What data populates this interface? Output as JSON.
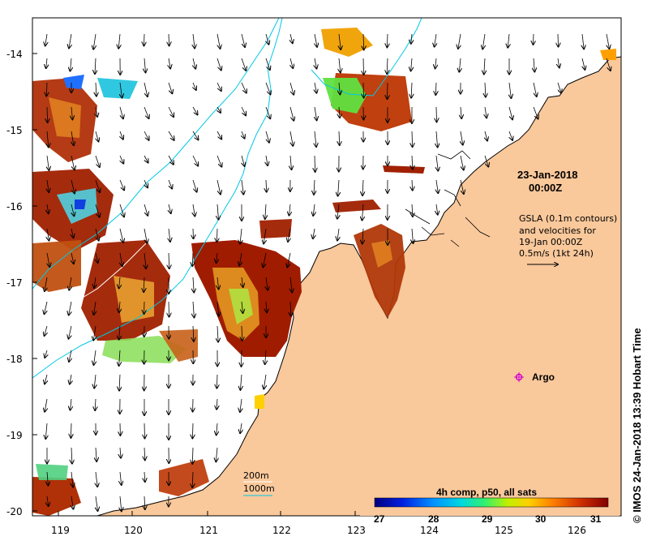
{
  "map": {
    "lat_ticks": [
      "-14",
      "-15",
      "-16",
      "-17",
      "-18",
      "-19",
      "-20"
    ],
    "lon_ticks": [
      "119",
      "120",
      "121",
      "122",
      "123",
      "124",
      "125",
      "126"
    ],
    "timestamp_date": "23-Jan-2018",
    "timestamp_time": "00:00Z",
    "gsla_line1": "GSLA (0.1m contours)",
    "gsla_line2": "and velocities for",
    "gsla_line3": "19-Jan 00:00Z",
    "gsla_line4": "0.5m/s (1kt 24h)",
    "argo_label": "Argo",
    "depth_200": "200m",
    "depth_1000": "1000m",
    "colorbar_title": "4h comp, p50, all sats",
    "colorbar_ticks": [
      "27",
      "28",
      "29",
      "30",
      "31"
    ],
    "credit": "© IMOS 24-Jan-2018 13:39 Hobart Time",
    "colors": {
      "land": "#f9c89b",
      "contour_1000m": "#00c8e6",
      "argo": "#d000d0"
    },
    "sst_colormap": [
      "#00007f",
      "#0040ff",
      "#00c0ff",
      "#00e0a0",
      "#80ff40",
      "#e0f000",
      "#ffa000",
      "#e05000",
      "#a01800",
      "#800000"
    ]
  }
}
